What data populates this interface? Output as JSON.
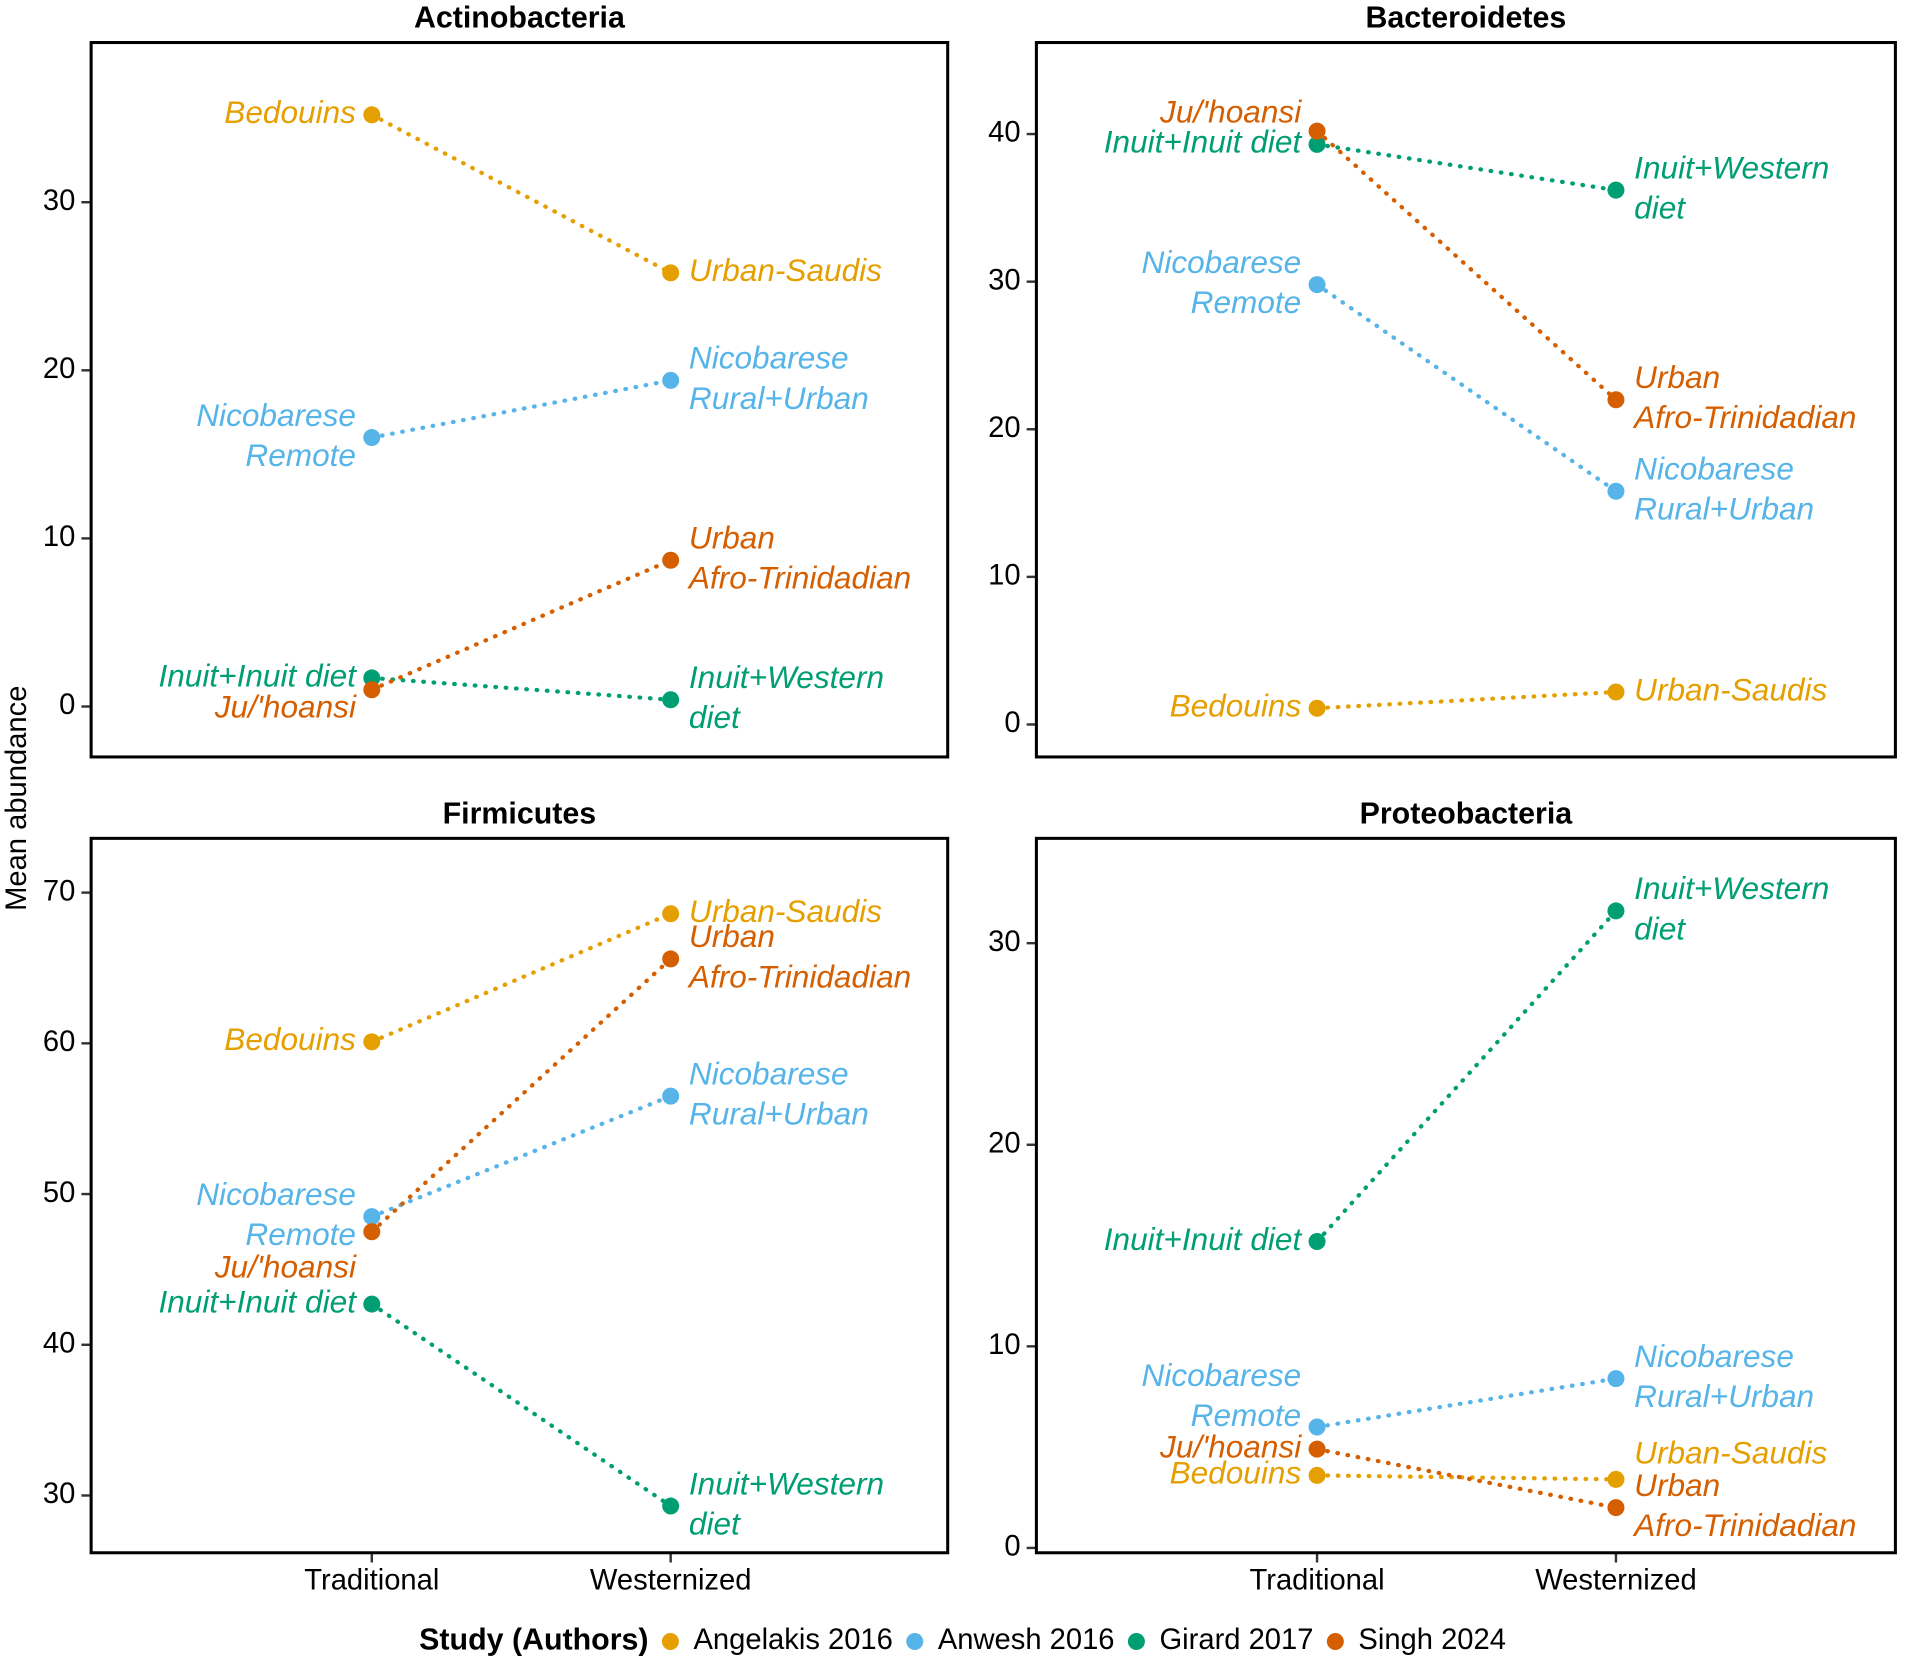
{
  "y_label": "Mean abundance",
  "categories": [
    "Traditional",
    "Westernized"
  ],
  "legend": {
    "title": "Study (Authors)",
    "items": [
      {
        "name": "Angelakis 2016",
        "color": "#E69F00"
      },
      {
        "name": "Anwesh 2016",
        "color": "#56B4E9"
      },
      {
        "name": "Girard 2017",
        "color": "#009E73"
      },
      {
        "name": "Singh 2024",
        "color": "#D55E00"
      }
    ]
  },
  "chart_data": [
    {
      "type": "line",
      "title": "Actinobacteria",
      "ylim": [
        -3,
        39.5
      ],
      "yticks": [
        0,
        10,
        20,
        30
      ],
      "series": [
        {
          "color": "#E69F00",
          "values": [
            35.2,
            25.8
          ],
          "labels": [
            [
              "Bedouins"
            ],
            [
              "Urban-Saudis"
            ]
          ]
        },
        {
          "color": "#56B4E9",
          "values": [
            16.0,
            19.4
          ],
          "labels": [
            [
              "Nicobarese",
              "Remote"
            ],
            [
              "Nicobarese",
              "Rural+Urban"
            ]
          ]
        },
        {
          "color": "#009E73",
          "values": [
            1.7,
            0.4
          ],
          "labels": [
            [
              "Inuit+Inuit diet"
            ],
            [
              "Inuit+Western",
              "diet"
            ]
          ]
        },
        {
          "color": "#D55E00",
          "values": [
            1.0,
            8.7
          ],
          "labels": [
            [
              "Ju/'hoansi"
            ],
            [
              "Urban",
              "Afro-Trinidadian"
            ]
          ]
        }
      ]
    },
    {
      "type": "line",
      "title": "Bacteroidetes",
      "ylim": [
        -2.2,
        46.2
      ],
      "yticks": [
        0,
        10,
        20,
        30,
        40
      ],
      "series": [
        {
          "color": "#E69F00",
          "values": [
            1.1,
            2.2
          ],
          "labels": [
            [
              "Bedouins"
            ],
            [
              "Urban-Saudis"
            ]
          ]
        },
        {
          "color": "#56B4E9",
          "values": [
            29.8,
            15.8
          ],
          "labels": [
            [
              "Nicobarese",
              "Remote"
            ],
            [
              "Nicobarese",
              "Rural+Urban"
            ]
          ]
        },
        {
          "color": "#009E73",
          "values": [
            39.3,
            36.2
          ],
          "labels": [
            [
              "Inuit+Inuit diet"
            ],
            [
              "Inuit+Western",
              "diet"
            ]
          ]
        },
        {
          "color": "#D55E00",
          "values": [
            40.2,
            22.0
          ],
          "labels": [
            [
              "Ju/'hoansi"
            ],
            [
              "Urban",
              "Afro-Trinidadian"
            ]
          ]
        }
      ]
    },
    {
      "type": "line",
      "title": "Firmicutes",
      "ylim": [
        26.2,
        73.6
      ],
      "yticks": [
        30,
        40,
        50,
        60,
        70
      ],
      "series": [
        {
          "color": "#E69F00",
          "values": [
            60.1,
            68.6
          ],
          "labels": [
            [
              "Bedouins"
            ],
            [
              "Urban-Saudis"
            ]
          ]
        },
        {
          "color": "#56B4E9",
          "values": [
            48.5,
            56.5
          ],
          "labels": [
            [
              "Nicobarese",
              "Remote"
            ],
            [
              "Nicobarese",
              "Rural+Urban"
            ]
          ]
        },
        {
          "color": "#009E73",
          "values": [
            42.7,
            29.3
          ],
          "labels": [
            [
              "Inuit+Inuit diet"
            ],
            [
              "Inuit+Western",
              "diet"
            ]
          ]
        },
        {
          "color": "#D55E00",
          "values": [
            47.5,
            65.6
          ],
          "labels": [
            [
              "Ju/'hoansi"
            ],
            [
              "Urban",
              "Afro-Trinidadian"
            ]
          ]
        }
      ]
    },
    {
      "type": "line",
      "title": "Proteobacteria",
      "ylim": [
        -0.24,
        35.2
      ],
      "yticks": [
        0,
        10,
        20,
        30
      ],
      "series": [
        {
          "color": "#E69F00",
          "values": [
            3.6,
            3.4
          ],
          "labels": [
            [
              "Bedouins"
            ],
            [
              "Urban-Saudis"
            ]
          ]
        },
        {
          "color": "#56B4E9",
          "values": [
            6.0,
            8.4
          ],
          "labels": [
            [
              "Nicobarese",
              "Remote"
            ],
            [
              "Nicobarese",
              "Rural+Urban"
            ]
          ]
        },
        {
          "color": "#009E73",
          "values": [
            15.2,
            31.6
          ],
          "labels": [
            [
              "Inuit+Inuit diet"
            ],
            [
              "Inuit+Western",
              "diet"
            ]
          ]
        },
        {
          "color": "#D55E00",
          "values": [
            4.9,
            2.0
          ],
          "labels": [
            [
              "Ju/'hoansi"
            ],
            [
              "Urban",
              "Afro-Trinidadian"
            ]
          ]
        }
      ]
    }
  ]
}
